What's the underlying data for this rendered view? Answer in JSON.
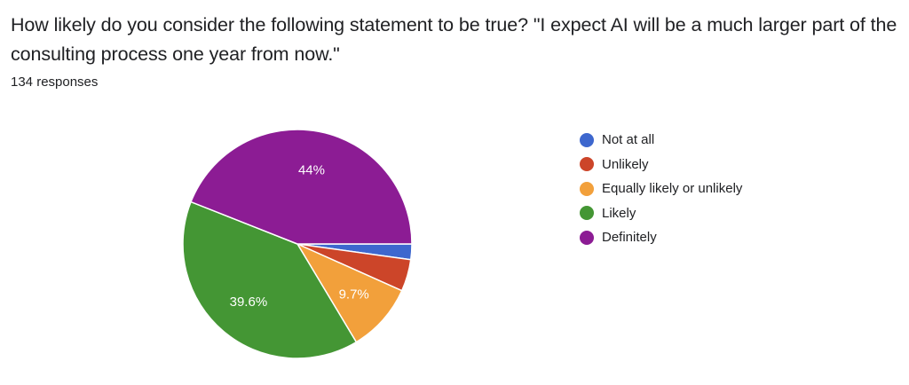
{
  "header": {
    "title": "How likely do you consider the following statement to be true? \"I expect AI will be a much larger part of the consulting process one year from now.\"",
    "response_count": "134 responses"
  },
  "chart_data": {
    "type": "pie",
    "title": "How likely do you consider the following statement to be true? \"I expect AI will be a much larger part of the consulting process one year from now.\"",
    "subtitle": "134 responses",
    "categories": [
      "Not at all",
      "Unlikely",
      "Equally likely or unlikely",
      "Likely",
      "Definitely"
    ],
    "values": [
      2.2,
      4.5,
      9.7,
      39.6,
      44.0
    ],
    "counts_estimated": [
      3,
      6,
      13,
      53,
      59
    ],
    "colors": [
      "#3d67ce",
      "#cc4529",
      "#f2a03b",
      "#449634",
      "#8c1c94"
    ],
    "data_labels": [
      "",
      "",
      "9.7%",
      "39.6%",
      "44%"
    ],
    "start_angle": "3 o'clock, clockwise",
    "legend_position": "right"
  },
  "legend": {
    "items": [
      {
        "label": "Not at all",
        "color": "#3d67ce"
      },
      {
        "label": "Unlikely",
        "color": "#cc4529"
      },
      {
        "label": "Equally likely or unlikely",
        "color": "#f2a03b"
      },
      {
        "label": "Likely",
        "color": "#449634"
      },
      {
        "label": "Definitely",
        "color": "#8c1c94"
      }
    ]
  }
}
